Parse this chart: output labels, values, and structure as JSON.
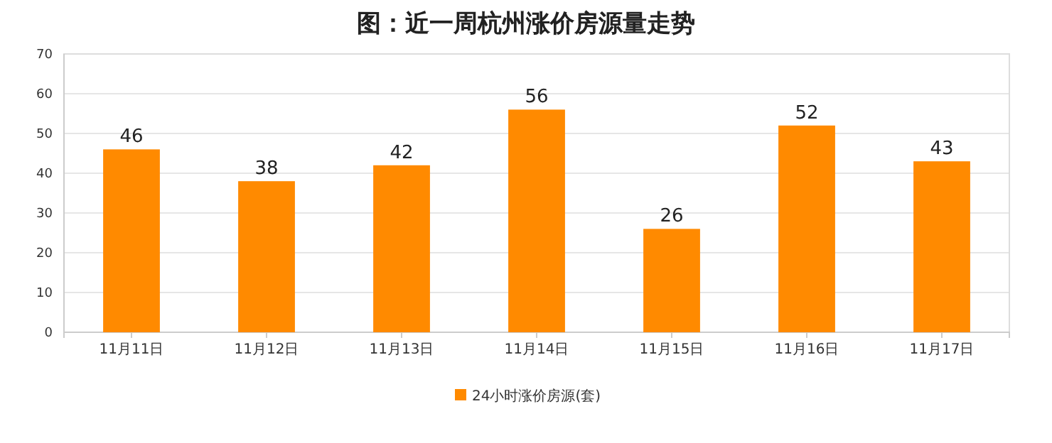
{
  "chart_data": {
    "type": "bar",
    "title": "图：近一周杭州涨价房源量走势",
    "categories": [
      "11月11日",
      "11月12日",
      "11月13日",
      "11月14日",
      "11月15日",
      "11月16日",
      "11月17日"
    ],
    "series": [
      {
        "name": "24小时涨价房源(套)",
        "color": "#ff8a00",
        "values": [
          46,
          38,
          42,
          56,
          26,
          52,
          43
        ]
      }
    ],
    "ylim": [
      0,
      70
    ],
    "yticks": [
      0,
      10,
      20,
      30,
      40,
      50,
      60,
      70
    ],
    "grid": "y",
    "legend": "bottom",
    "data_labels": true
  }
}
